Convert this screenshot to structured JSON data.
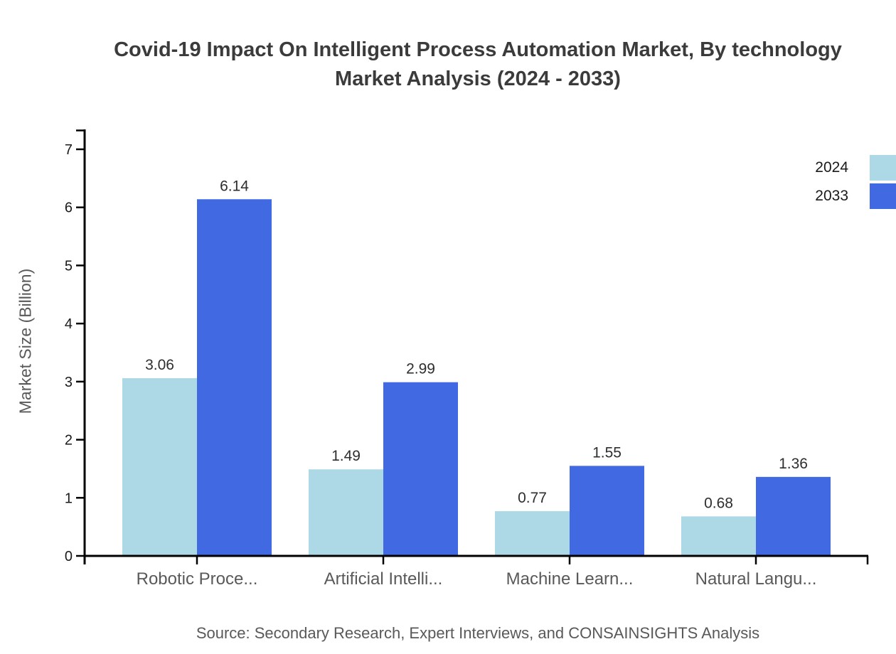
{
  "chart_data": {
    "type": "bar",
    "title": "Covid-19 Impact On Intelligent Process Automation Market, By technology Market Analysis (2024 - 2033)",
    "title_lines": [
      "Covid-19 Impact On Intelligent Process Automation Market, By technology",
      "Market Analysis (2024 - 2033)"
    ],
    "ylabel": "Market Size (Billion)",
    "xlabel": "",
    "ylim": [
      0,
      7
    ],
    "yticks": [
      0,
      1,
      2,
      3,
      4,
      5,
      6,
      7
    ],
    "grid": false,
    "legend_position": "top-right",
    "categories": [
      "Robotic Proce...",
      "Artificial Intelli...",
      "Machine Learn...",
      "Natural Langu..."
    ],
    "series": [
      {
        "name": "2024",
        "color": "#add8e6",
        "values": [
          3.06,
          1.49,
          0.77,
          0.68
        ]
      },
      {
        "name": "2033",
        "color": "#4169e1",
        "values": [
          6.14,
          2.99,
          1.55,
          1.36
        ]
      }
    ],
    "value_label_format": "two-decimals",
    "source_note": "Source: Secondary Research, Expert Interviews, and CONSAINSIGHTS Analysis"
  },
  "colors": {
    "title": "#3b3b3b",
    "axis": "#000000",
    "tick_label": "#1a1a1a",
    "category_label": "#595959",
    "value_label": "#2e2e2e",
    "source": "#595959",
    "background": "#ffffff"
  }
}
